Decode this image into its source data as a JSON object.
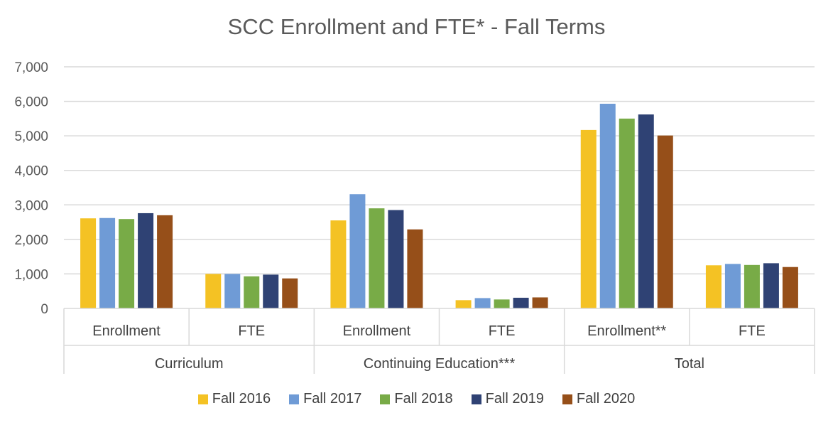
{
  "chart_data": {
    "type": "bar",
    "title": "SCC Enrollment and FTE* - Fall Terms",
    "groups": [
      "Curriculum",
      "Continuing Education***",
      "Total"
    ],
    "categories": [
      "Enrollment",
      "FTE",
      "Enrollment",
      "FTE",
      "Enrollment**",
      "FTE"
    ],
    "y_ticks": [
      "0",
      "1,000",
      "2,000",
      "3,000",
      "4,000",
      "5,000",
      "6,000",
      "7,000"
    ],
    "ylim": [
      0,
      7000
    ],
    "grid": true,
    "legend_position": "bottom",
    "series": [
      {
        "name": "Fall 2016",
        "color": "#F4C224",
        "values": [
          2610,
          1000,
          2550,
          240,
          5170,
          1250
        ]
      },
      {
        "name": "Fall 2017",
        "color": "#6F9BD6",
        "values": [
          2620,
          1000,
          3310,
          300,
          5930,
          1290
        ]
      },
      {
        "name": "Fall 2018",
        "color": "#78AB47",
        "values": [
          2590,
          930,
          2900,
          260,
          5500,
          1260
        ]
      },
      {
        "name": "Fall 2019",
        "color": "#2F4274",
        "values": [
          2760,
          980,
          2850,
          310,
          5620,
          1310
        ]
      },
      {
        "name": "Fall 2020",
        "color": "#964F19",
        "values": [
          2700,
          870,
          2290,
          320,
          5010,
          1200
        ]
      }
    ]
  }
}
